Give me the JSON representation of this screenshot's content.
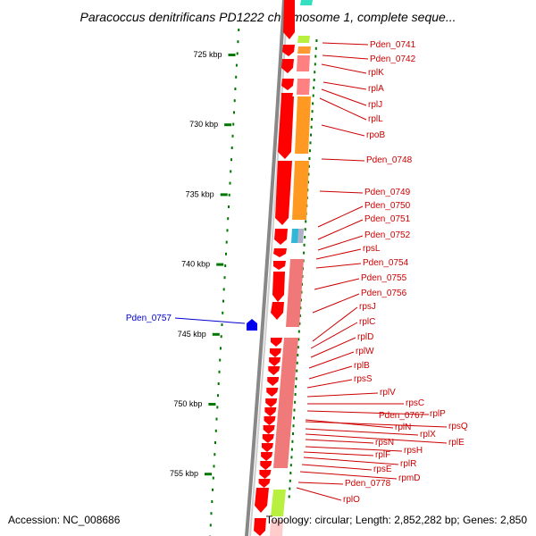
{
  "header": {
    "title": "Paracoccus denitrificans PD1222 chromosome 1, complete seque..."
  },
  "footer": {
    "accession": "Accession: NC_008686",
    "summary": "Topology: circular; Length: 2,852,282 bp; Genes: 2,850"
  },
  "colors": {
    "forward_gene": "#ff0000",
    "reverse_gene": "#0000ee",
    "tick": "#007700",
    "backbone": "#888888",
    "label_forward": "#cc0000",
    "label_reverse": "#0000cc"
  },
  "scale": {
    "unit": "kbp",
    "labels": [
      "725 kbp",
      "730 kbp",
      "735 kbp",
      "740 kbp",
      "745 kbp",
      "750 kbp",
      "755 kbp"
    ]
  },
  "genes": [
    {
      "name": "Pden_0741",
      "strand": "+"
    },
    {
      "name": "Pden_0742",
      "strand": "+"
    },
    {
      "name": "rplK",
      "strand": "+"
    },
    {
      "name": "rplA",
      "strand": "+"
    },
    {
      "name": "rplJ",
      "strand": "+"
    },
    {
      "name": "rplL",
      "strand": "+"
    },
    {
      "name": "rpoB",
      "strand": "+"
    },
    {
      "name": "Pden_0748",
      "strand": "+"
    },
    {
      "name": "Pden_0749",
      "strand": "+"
    },
    {
      "name": "Pden_0750",
      "strand": "+"
    },
    {
      "name": "Pden_0751",
      "strand": "+"
    },
    {
      "name": "Pden_0752",
      "strand": "+"
    },
    {
      "name": "rpsL",
      "strand": "+"
    },
    {
      "name": "Pden_0754",
      "strand": "+"
    },
    {
      "name": "Pden_0755",
      "strand": "+"
    },
    {
      "name": "Pden_0756",
      "strand": "+"
    },
    {
      "name": "rpsJ",
      "strand": "+"
    },
    {
      "name": "rplC",
      "strand": "+"
    },
    {
      "name": "rplD",
      "strand": "+"
    },
    {
      "name": "rplW",
      "strand": "+"
    },
    {
      "name": "rplB",
      "strand": "+"
    },
    {
      "name": "rpsS",
      "strand": "+"
    },
    {
      "name": "rplV",
      "strand": "+"
    },
    {
      "name": "rpsC",
      "strand": "+"
    },
    {
      "name": "Pden_0767",
      "strand": "+"
    },
    {
      "name": "rplP",
      "strand": "+"
    },
    {
      "name": "rplN",
      "strand": "+"
    },
    {
      "name": "rpsQ",
      "strand": "+"
    },
    {
      "name": "rplX",
      "strand": "+"
    },
    {
      "name": "rplE",
      "strand": "+"
    },
    {
      "name": "rpsN",
      "strand": "+"
    },
    {
      "name": "rpsH",
      "strand": "+"
    },
    {
      "name": "rplF",
      "strand": "+"
    },
    {
      "name": "rplR",
      "strand": "+"
    },
    {
      "name": "rpsE",
      "strand": "+"
    },
    {
      "name": "rpmD",
      "strand": "+"
    },
    {
      "name": "Pden_0778",
      "strand": "+"
    },
    {
      "name": "rplO",
      "strand": "+"
    },
    {
      "name": "Pden_0757",
      "strand": "-"
    }
  ]
}
